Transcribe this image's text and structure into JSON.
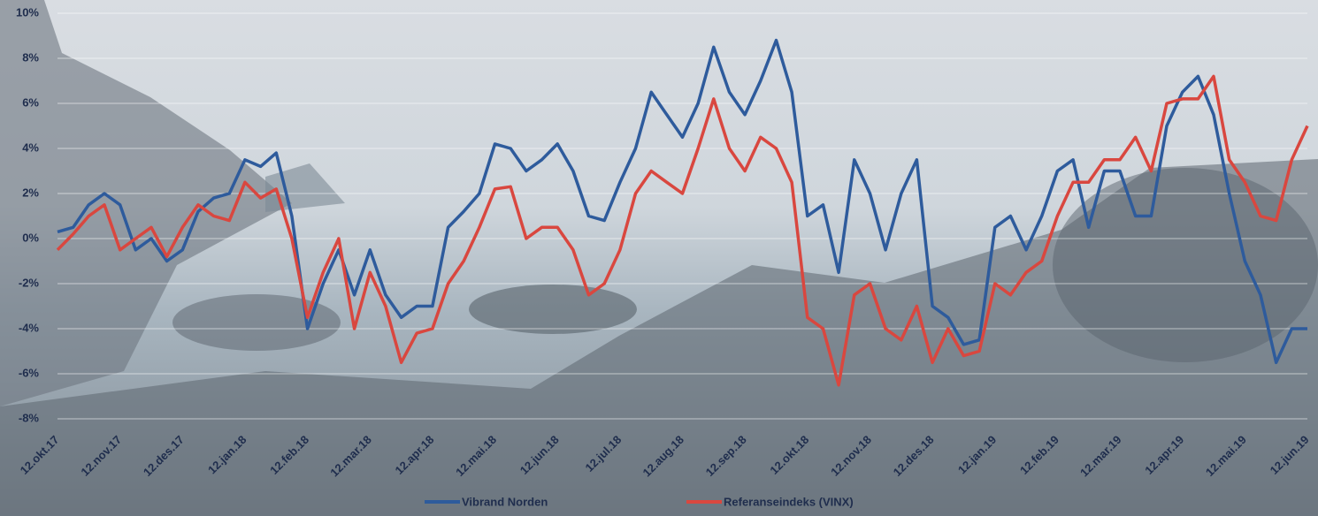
{
  "chart_data": {
    "type": "line",
    "categories": [
      "12.okt.17",
      null,
      null,
      null,
      "12.nov.17",
      null,
      null,
      null,
      "12.des.17",
      null,
      null,
      null,
      "12.jan.18",
      null,
      null,
      null,
      "12.feb.18",
      null,
      null,
      null,
      "12.mar.18",
      null,
      null,
      null,
      "12.apr.18",
      null,
      null,
      null,
      "12.mai.18",
      null,
      null,
      null,
      "12.jun.18",
      null,
      null,
      null,
      "12.jul.18",
      null,
      null,
      null,
      "12.aug.18",
      null,
      null,
      null,
      "12.sep.18",
      null,
      null,
      null,
      "12.okt.18",
      null,
      null,
      null,
      "12.nov.18",
      null,
      null,
      null,
      "12.des.18",
      null,
      null,
      null,
      "12.jan.19",
      null,
      null,
      null,
      "12.feb.19",
      null,
      null,
      null,
      "12.mar.19",
      null,
      null,
      null,
      "12.apr.19",
      null,
      null,
      null,
      "12.mai.19",
      null,
      null,
      null,
      "12.jun.19"
    ],
    "series": [
      {
        "name": "Vibrand Norden",
        "color": "#2e5b9c",
        "values": [
          0.3,
          0.5,
          1.5,
          2.0,
          1.5,
          -0.5,
          0,
          -1,
          -0.5,
          1.2,
          1.8,
          2.0,
          3.5,
          3.2,
          3.8,
          1.0,
          -4.0,
          -2.0,
          -0.5,
          -2.5,
          -0.5,
          -2.5,
          -3.5,
          -3.0,
          -3.0,
          0.5,
          1.2,
          2.0,
          4.2,
          4.0,
          3.0,
          3.5,
          4.2,
          3.0,
          1.0,
          0.8,
          2.5,
          4.0,
          6.5,
          5.5,
          4.5,
          6.0,
          8.5,
          6.5,
          5.5,
          7.0,
          8.8,
          6.5,
          1.0,
          1.5,
          -1.5,
          3.5,
          2.0,
          -0.5,
          2.0,
          3.5,
          -3.0,
          -3.5,
          -4.7,
          -4.5,
          0.5,
          1.0,
          -0.5,
          1.0,
          3.0,
          3.5,
          0.5,
          3.0,
          3.0,
          1.0,
          1.0,
          5.0,
          6.5,
          7.2,
          5.5,
          2.0,
          -1.0,
          -2.5,
          -5.5,
          -4.0,
          -4.0
        ]
      },
      {
        "name": "Referanseindeks (VINX)",
        "color": "#d9473f",
        "values": [
          -0.5,
          0.2,
          1.0,
          1.5,
          -0.5,
          0,
          0.5,
          -0.8,
          0.5,
          1.5,
          1.0,
          0.8,
          2.5,
          1.8,
          2.2,
          0,
          -3.5,
          -1.5,
          0,
          -4.0,
          -1.5,
          -3.0,
          -5.5,
          -4.2,
          -4.0,
          -2.0,
          -1.0,
          0.5,
          2.2,
          2.3,
          0,
          0.5,
          0.5,
          -0.5,
          -2.5,
          -2.0,
          -0.5,
          2.0,
          3.0,
          2.5,
          2.0,
          4.0,
          6.2,
          4.0,
          3.0,
          4.5,
          4.0,
          2.5,
          -3.5,
          -4.0,
          -6.5,
          -2.5,
          -2.0,
          -4.0,
          -4.5,
          -3.0,
          -5.5,
          -4.0,
          -5.2,
          -5.0,
          -2.0,
          -2.5,
          -1.5,
          -1.0,
          1.0,
          2.5,
          2.5,
          3.5,
          3.5,
          4.5,
          3.0,
          6.0,
          6.2,
          6.2,
          7.2,
          3.5,
          2.5,
          1.0,
          0.8,
          3.5,
          5.0
        ]
      }
    ],
    "ylim": [
      -8,
      10
    ],
    "yticks": [
      {
        "value": -8,
        "label": "-8%"
      },
      {
        "value": -6,
        "label": "-6%"
      },
      {
        "value": -4,
        "label": "-4%"
      },
      {
        "value": -2,
        "label": "-2%"
      },
      {
        "value": 0,
        "label": "0%"
      },
      {
        "value": 2,
        "label": "2%"
      },
      {
        "value": 4,
        "label": "4%"
      },
      {
        "value": 6,
        "label": "6%"
      },
      {
        "value": 8,
        "label": "8%"
      },
      {
        "value": 10,
        "label": "10%"
      }
    ],
    "grid": true
  }
}
